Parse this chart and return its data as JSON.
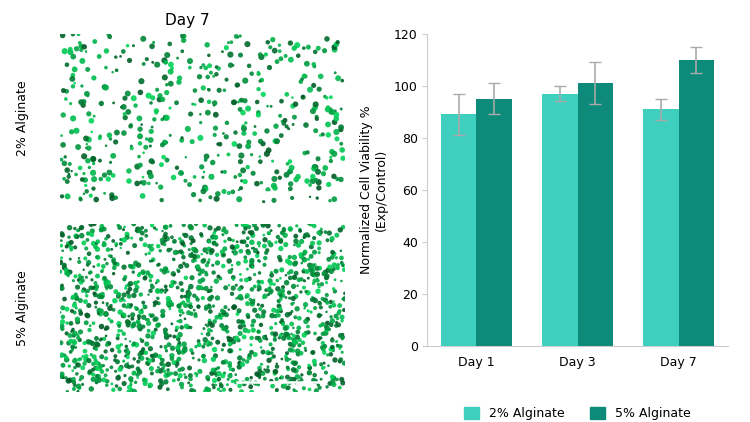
{
  "title_left": "Day 7",
  "label_top": "2% Alginate",
  "label_bottom": "5% Alginate",
  "bar_categories": [
    "Day 1",
    "Day 3",
    "Day 7"
  ],
  "series": [
    {
      "label": "2% Alginate",
      "color": "#3ECFBF",
      "values": [
        89,
        97,
        91
      ],
      "errors": [
        8,
        3,
        4
      ]
    },
    {
      "label": "5% Alginate",
      "color": "#0E8A7A",
      "values": [
        95,
        101,
        110
      ],
      "errors": [
        6,
        8,
        5
      ]
    }
  ],
  "ylabel": "Normalized Cell Viability %\n(Exp/Control)",
  "ylim": [
    0,
    120
  ],
  "yticks": [
    0,
    20,
    40,
    60,
    80,
    100,
    120
  ],
  "bar_width": 0.35,
  "background_color": "#ffffff",
  "figure_width": 7.5,
  "figure_height": 4.22,
  "dpi": 100,
  "error_bar_color": "#aaaaaa",
  "error_cap_size": 4,
  "micro_title_fontsize": 11,
  "axis_label_fontsize": 9,
  "tick_fontsize": 9,
  "legend_fontsize": 9
}
